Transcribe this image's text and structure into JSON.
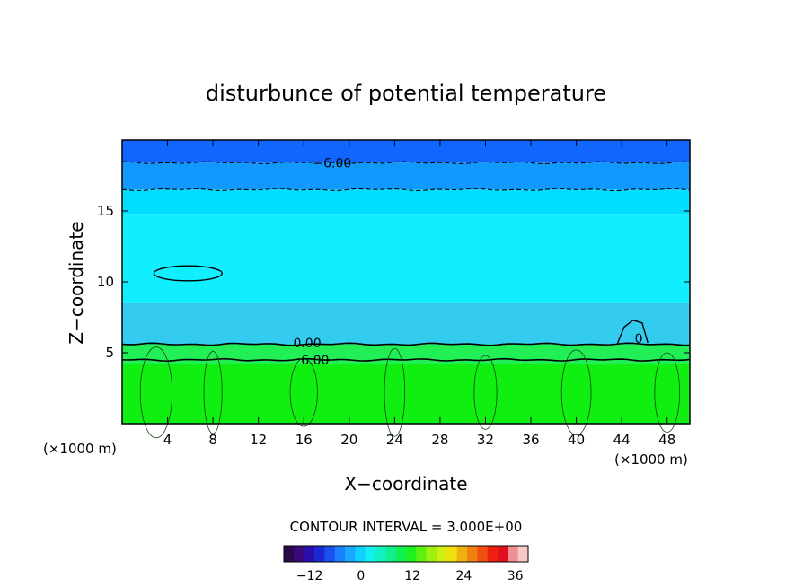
{
  "chart_data": {
    "type": "heatmap",
    "title": "disturbunce of potential temperature",
    "xlabel": "X−coordinate",
    "ylabel": "Z−coordinate",
    "x_unit_left": "(×1000 m)",
    "x_unit_right": "(×1000 m)",
    "xlim": [
      0,
      50
    ],
    "ylim": [
      0,
      20
    ],
    "x_ticks": [
      4,
      8,
      12,
      16,
      20,
      24,
      28,
      32,
      36,
      40,
      44,
      48
    ],
    "x_tick_labels": [
      "4",
      "8",
      "12",
      "16",
      "20",
      "24",
      "28",
      "32",
      "36",
      "40",
      "44",
      "48"
    ],
    "y_ticks": [
      5,
      10,
      15
    ],
    "y_tick_labels": [
      "5",
      "10",
      "15"
    ],
    "contour_interval_text": "CONTOUR INTERVAL = 3.000E+00",
    "contour_labels": [
      {
        "text": "−6.00",
        "x": 18.5,
        "y": 18.4
      },
      {
        "text": "0.00",
        "x": 16.3,
        "y": 5.7
      },
      {
        "text": "6.00",
        "x": 17.0,
        "y": 4.5
      },
      {
        "text": "0",
        "x": 45.5,
        "y": 6.0
      }
    ],
    "layers": [
      {
        "z_from": 0,
        "z_to": 4.2,
        "value": 9,
        "color": "#11ee11"
      },
      {
        "z_from": 4.2,
        "z_to": 5.6,
        "value": 6,
        "color": "#22ee55"
      },
      {
        "z_from": 5.6,
        "z_to": 8.5,
        "value": 0,
        "color": "#33ccee"
      },
      {
        "z_from": 8.5,
        "z_to": 14.8,
        "value": 0,
        "color": "#11eeff"
      },
      {
        "z_from": 14.8,
        "z_to": 16.5,
        "value": -3,
        "color": "#00ddff"
      },
      {
        "z_from": 16.5,
        "z_to": 18.4,
        "value": -6,
        "color": "#1199ff"
      },
      {
        "z_from": 18.4,
        "z_to": 20,
        "value": -9,
        "color": "#1166ff"
      }
    ],
    "contour_levels": [
      {
        "value": -6,
        "z": 18.4,
        "style": "dashed"
      },
      {
        "value": -3,
        "z": 16.5,
        "style": "dashed"
      },
      {
        "value": 0,
        "z": 5.6,
        "style": "solid"
      },
      {
        "value": 6,
        "z": 4.5,
        "style": "solid"
      }
    ],
    "colorbar": {
      "min": -18,
      "max": 39,
      "ticks": [
        -12,
        0,
        12,
        24,
        36
      ],
      "tick_labels": [
        "−12",
        "0",
        "12",
        "24",
        "36"
      ],
      "colors": [
        "#2a0a4a",
        "#3a0a7a",
        "#2a10aa",
        "#1a2ad0",
        "#1a50ee",
        "#1a80ff",
        "#1aa8ff",
        "#10d0ff",
        "#10f0f0",
        "#10f0c0",
        "#10f090",
        "#10f050",
        "#20f020",
        "#60f010",
        "#a0f010",
        "#d0f010",
        "#f0e010",
        "#f0b010",
        "#f08010",
        "#f05010",
        "#f02010",
        "#e01020",
        "#f09090",
        "#f8c8c8"
      ]
    }
  }
}
